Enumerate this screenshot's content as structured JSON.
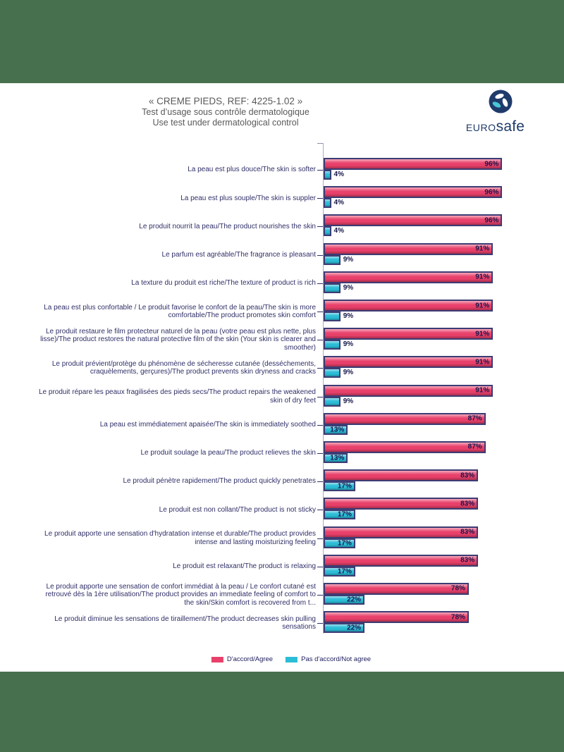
{
  "page": {
    "band_color": "#47714E",
    "paper_color": "#FFFFFF"
  },
  "header": {
    "title_line1": "« CREME PIEDS, REF: 4225-1.02 »",
    "title_line2": "Test d’usage sous contrôle dermatologique",
    "title_line3": "Use test under dermatological control"
  },
  "logo": {
    "brand_prefix": "EURO",
    "brand_suffix": "safe",
    "navy": "#1F3B6B",
    "teal": "#49C7D3"
  },
  "chart_data": {
    "type": "bar",
    "orientation": "horizontal",
    "title": "« CREME PIEDS, REF: 4225-1.02 » Test d'usage sous contrôle dermatologique / Use test under dermatological control",
    "xlim": [
      0,
      100
    ],
    "grid": false,
    "legend_position": "bottom",
    "value_suffix": "%",
    "categories": [
      "La peau est plus douce/The skin is softer",
      "La peau est plus souple/The skin is suppler",
      "Le produit nourrit la peau/The product nourishes the skin",
      "Le parfum est agréable/The fragrance is pleasant",
      "La texture du produit est riche/The texture of product is rich",
      "La peau est plus confortable / Le produit favorise le confort de la peau/The skin is more comfortable/The product promotes skin comfort",
      "Le produit restaure le film protecteur naturel de la peau (votre peau est plus nette, plus lisse)/The product restores the natural protective film of the skin (Your skin is clearer and smoother)",
      "Le produit prévient/protège du phénomène de sécheresse cutanée (desséchements, craquèlements, gerçures)/The product prevents skin dryness and cracks",
      "Le produit répare les peaux fragilisées des pieds secs/The product repairs the weakened skin of dry feet",
      "La peau est immédiatement apaisée/The skin is immediately soothed",
      "Le produit soulage la peau/The product relieves the skin",
      "Le produit pénètre rapidement/The product quickly penetrates",
      "Le produit est non collant/The product is not sticky",
      "Le produit apporte une sensation d'hydratation intense et durable/The product provides intense and lasting moisturizing feeling",
      "Le produit est relaxant/The product is relaxing",
      "Le produit apporte une sensation de confort immédiat à la peau / Le confort cutané est retrouvé dès la 1ère utilisation/The product provides an immediate feeling of comfort to the skin/Skin comfort is recovered from t...",
      "Le produit diminue les sensations de tiraillement/The product decreases skin pulling sensations"
    ],
    "series": [
      {
        "name": "D'accord/Agree",
        "color": "#E8406A",
        "values": [
          96,
          96,
          96,
          91,
          91,
          91,
          91,
          91,
          91,
          87,
          87,
          83,
          83,
          83,
          83,
          78,
          78
        ]
      },
      {
        "name": "Pas d'accord/Not agree",
        "color": "#2BBCD6",
        "values": [
          4,
          4,
          4,
          9,
          9,
          9,
          9,
          9,
          9,
          13,
          13,
          17,
          17,
          17,
          17,
          22,
          22
        ]
      }
    ],
    "styles": {
      "bar_border": "#3C3C74",
      "value_label_color": "#16164A",
      "category_label_color": "#2F2F68",
      "axis_color": "#ABABC4"
    }
  }
}
